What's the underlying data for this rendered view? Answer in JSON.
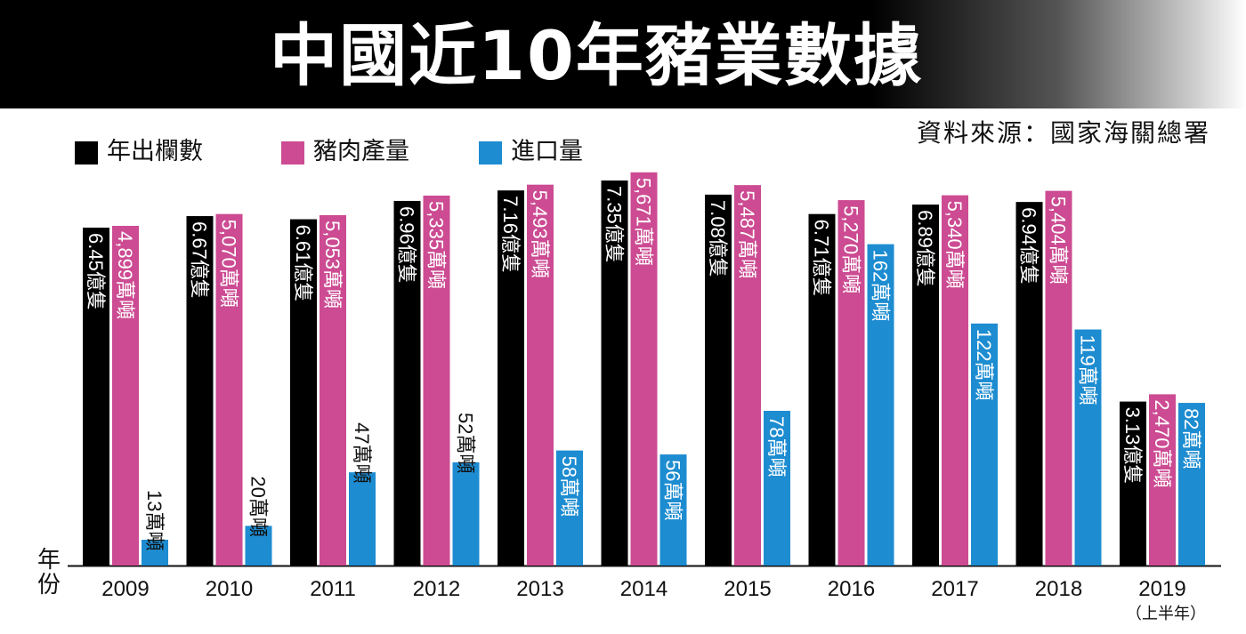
{
  "title": "中國近10年豬業數據",
  "source": "資料來源：國家海關總署",
  "ylabel": "年份",
  "colors": {
    "pigs": "#000000",
    "pork": "#cc4b92",
    "imports": "#1d8cd1"
  },
  "subnote": "（上半年）",
  "chart_data": {
    "type": "bar",
    "title": "中國近10年豬業數據",
    "categories": [
      "2009",
      "2010",
      "2011",
      "2012",
      "2013",
      "2014",
      "2015",
      "2016",
      "2017",
      "2018",
      "2019"
    ],
    "series": [
      {
        "name": "年出欄數",
        "unit": "億隻",
        "values": [
          6.45,
          6.67,
          6.61,
          6.96,
          7.16,
          7.35,
          7.08,
          6.71,
          6.89,
          6.94,
          3.13
        ],
        "labels": [
          "6.45億隻",
          "6.67億隻",
          "6.61億隻",
          "6.96億隻",
          "7.16億隻",
          "7.35億隻",
          "7.08億隻",
          "6.71億隻",
          "6.89億隻",
          "6.94億隻",
          "3.13億隻"
        ]
      },
      {
        "name": "豬肉產量",
        "unit": "萬噸",
        "values": [
          4899,
          5070,
          5053,
          5335,
          5493,
          5671,
          5487,
          5270,
          5340,
          5404,
          2470
        ],
        "labels": [
          "4,899萬噸",
          "5,070萬噸",
          "5,053萬噸",
          "5,335萬噸",
          "5,493萬噸",
          "5,671萬噸",
          "5,487萬噸",
          "5,270萬噸",
          "5,340萬噸",
          "5,404萬噸",
          "2,470萬噸"
        ]
      },
      {
        "name": "進口量",
        "unit": "萬噸",
        "values": [
          13,
          20,
          47,
          52,
          58,
          56,
          78,
          162,
          122,
          119,
          82
        ],
        "labels": [
          "13萬噸",
          "20萬噸",
          "47萬噸",
          "52萬噸",
          "58萬噸",
          "56萬噸",
          "78萬噸",
          "162萬噸",
          "122萬噸",
          "119萬噸",
          "82萬噸"
        ]
      }
    ],
    "xlabel": "年份",
    "ylabel": "",
    "legend": "top-left",
    "grid": false
  }
}
